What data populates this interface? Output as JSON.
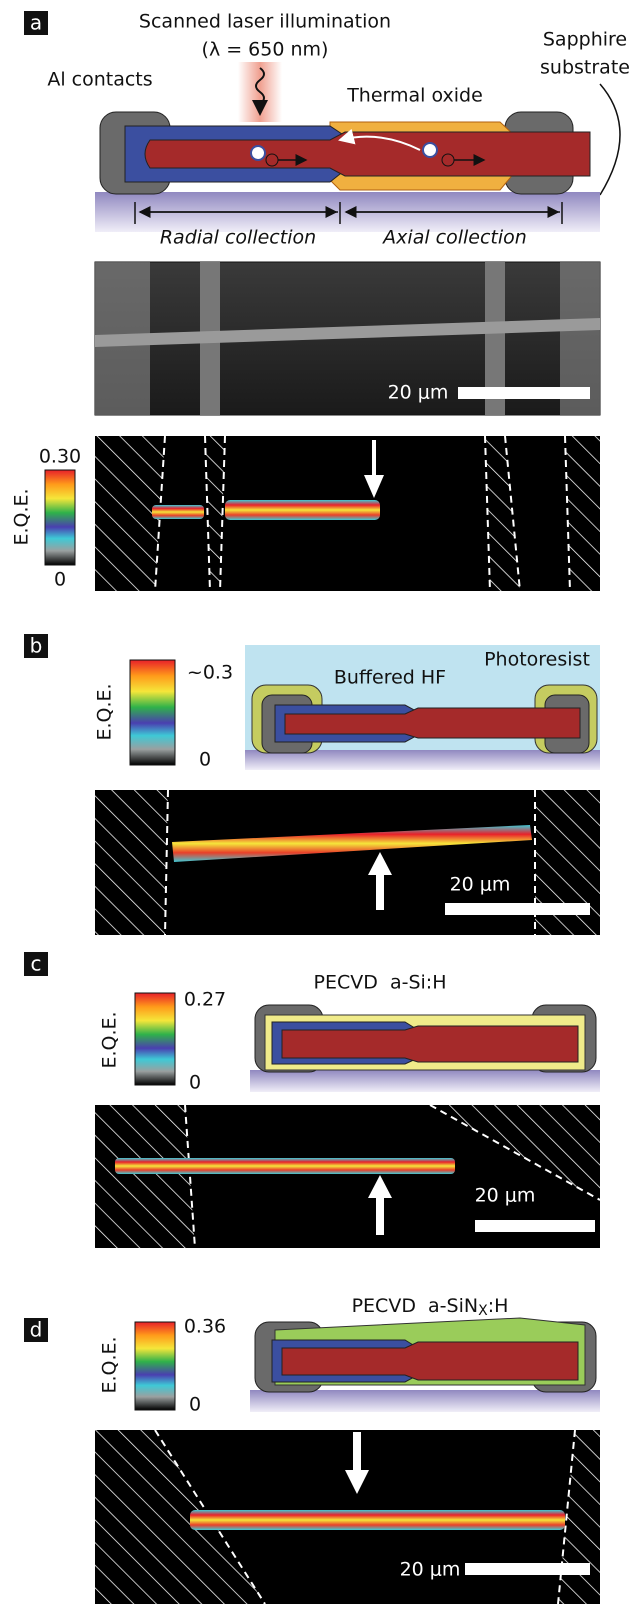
{
  "panels": [
    {
      "label": "a",
      "illumination": [
        "Scanned laser illumination",
        "(λ = 650 nm)"
      ],
      "contacts": "Al contacts",
      "oxide": "Thermal oxide",
      "substrate": [
        "Sapphire",
        "substrate"
      ],
      "regions": [
        "Radial collection",
        "Axial collection"
      ],
      "sem_scale_bar": "20 μm",
      "colorbar": {
        "title": "E.Q.E.",
        "max": "0.30",
        "min": "0"
      }
    },
    {
      "label": "b",
      "coating": "Buffered HF",
      "mask": "Photoresist",
      "scale_bar": "20 μm",
      "colorbar": {
        "title": "E.Q.E.",
        "max": "~0.3",
        "min": "0"
      }
    },
    {
      "label": "c",
      "coating": "PECVD  a-Si:H",
      "scale_bar": "20 μm",
      "colorbar": {
        "title": "E.Q.E.",
        "max": "0.27",
        "min": "0"
      }
    },
    {
      "label": "d",
      "coating": {
        "main": "PECVD  a-SiN",
        "sub": "X",
        "end": ":H"
      },
      "scale_bar": "20 μm",
      "colorbar": {
        "title": "E.Q.E.",
        "max": "0.36",
        "min": "0"
      }
    }
  ]
}
